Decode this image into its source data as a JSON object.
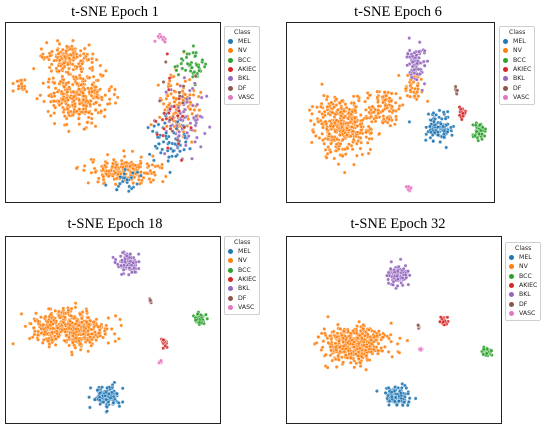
{
  "legend": {
    "title": "Class",
    "classes": [
      {
        "name": "MEL",
        "color": "#1f77b4"
      },
      {
        "name": "NV",
        "color": "#ff7f0e"
      },
      {
        "name": "BCC",
        "color": "#2ca02c"
      },
      {
        "name": "AKIEC",
        "color": "#d62728"
      },
      {
        "name": "BKL",
        "color": "#9467bd"
      },
      {
        "name": "DF",
        "color": "#8c564b"
      },
      {
        "name": "VASC",
        "color": "#e377c2"
      }
    ]
  },
  "chart_data": [
    {
      "type": "scatter",
      "title": "t-SNE Epoch 1",
      "xlabel": "",
      "ylabel": "",
      "grid": false,
      "axis_ticks": false,
      "legend_placement": "right",
      "clusters": [
        {
          "class": "NV",
          "center": [
            0.33,
            0.4
          ],
          "spread": [
            0.15,
            0.14
          ],
          "n": 320
        },
        {
          "class": "NV",
          "center": [
            0.28,
            0.18
          ],
          "spread": [
            0.1,
            0.07
          ],
          "n": 120
        },
        {
          "class": "NV",
          "center": [
            0.55,
            0.84
          ],
          "spread": [
            0.16,
            0.07
          ],
          "n": 200
        },
        {
          "class": "NV",
          "center": [
            0.83,
            0.48
          ],
          "spread": [
            0.09,
            0.18
          ],
          "n": 120
        },
        {
          "class": "NV",
          "center": [
            0.06,
            0.34
          ],
          "spread": [
            0.03,
            0.04
          ],
          "n": 20
        },
        {
          "class": "BCC",
          "center": [
            0.88,
            0.22
          ],
          "spread": [
            0.06,
            0.08
          ],
          "n": 45
        },
        {
          "class": "BKL",
          "center": [
            0.86,
            0.56
          ],
          "spread": [
            0.08,
            0.2
          ],
          "n": 70
        },
        {
          "class": "MEL",
          "center": [
            0.78,
            0.66
          ],
          "spread": [
            0.09,
            0.14
          ],
          "n": 60
        },
        {
          "class": "MEL",
          "center": [
            0.57,
            0.9
          ],
          "spread": [
            0.07,
            0.05
          ],
          "n": 25
        },
        {
          "class": "AKIEC",
          "center": [
            0.78,
            0.52
          ],
          "spread": [
            0.1,
            0.22
          ],
          "n": 25
        },
        {
          "class": "DF",
          "center": [
            0.82,
            0.45
          ],
          "spread": [
            0.1,
            0.2
          ],
          "n": 12
        },
        {
          "class": "VASC",
          "center": [
            0.73,
            0.06
          ],
          "spread": [
            0.04,
            0.02
          ],
          "n": 12
        }
      ]
    },
    {
      "type": "scatter",
      "title": "t-SNE Epoch 6",
      "xlabel": "",
      "ylabel": "",
      "grid": false,
      "axis_ticks": false,
      "legend_placement": "right",
      "clusters": [
        {
          "class": "NV",
          "center": [
            0.27,
            0.57
          ],
          "spread": [
            0.13,
            0.16
          ],
          "n": 380
        },
        {
          "class": "NV",
          "center": [
            0.47,
            0.46
          ],
          "spread": [
            0.07,
            0.1
          ],
          "n": 90
        },
        {
          "class": "NV",
          "center": [
            0.62,
            0.36
          ],
          "spread": [
            0.05,
            0.07
          ],
          "n": 40
        },
        {
          "class": "BKL",
          "center": [
            0.63,
            0.21
          ],
          "spread": [
            0.04,
            0.09
          ],
          "n": 80
        },
        {
          "class": "MEL",
          "center": [
            0.74,
            0.59
          ],
          "spread": [
            0.06,
            0.07
          ],
          "n": 100
        },
        {
          "class": "BCC",
          "center": [
            0.95,
            0.61
          ],
          "spread": [
            0.03,
            0.04
          ],
          "n": 50
        },
        {
          "class": "AKIEC",
          "center": [
            0.86,
            0.5
          ],
          "spread": [
            0.02,
            0.03
          ],
          "n": 25
        },
        {
          "class": "DF",
          "center": [
            0.83,
            0.38
          ],
          "spread": [
            0.01,
            0.02
          ],
          "n": 6
        },
        {
          "class": "VASC",
          "center": [
            0.59,
            0.94
          ],
          "spread": [
            0.01,
            0.02
          ],
          "n": 12
        }
      ]
    },
    {
      "type": "scatter",
      "title": "t-SNE Epoch 18",
      "xlabel": "",
      "ylabel": "",
      "grid": false,
      "axis_ticks": false,
      "legend_placement": "right",
      "clusters": [
        {
          "class": "NV",
          "center": [
            0.28,
            0.49
          ],
          "spread": [
            0.16,
            0.09
          ],
          "n": 500
        },
        {
          "class": "BKL",
          "center": [
            0.57,
            0.13
          ],
          "spread": [
            0.05,
            0.05
          ],
          "n": 110
        },
        {
          "class": "MEL",
          "center": [
            0.47,
            0.87
          ],
          "spread": [
            0.06,
            0.06
          ],
          "n": 140
        },
        {
          "class": "BCC",
          "center": [
            0.92,
            0.44
          ],
          "spread": [
            0.025,
            0.025
          ],
          "n": 50
        },
        {
          "class": "AKIEC",
          "center": [
            0.75,
            0.57
          ],
          "spread": [
            0.015,
            0.02
          ],
          "n": 25
        },
        {
          "class": "DF",
          "center": [
            0.68,
            0.34
          ],
          "spread": [
            0.008,
            0.01
          ],
          "n": 8
        },
        {
          "class": "VASC",
          "center": [
            0.73,
            0.68
          ],
          "spread": [
            0.008,
            0.01
          ],
          "n": 8
        }
      ]
    },
    {
      "type": "scatter",
      "title": "t-SNE Epoch 32",
      "xlabel": "",
      "ylabel": "",
      "grid": false,
      "axis_ticks": false,
      "legend_placement": "right",
      "clusters": [
        {
          "class": "NV",
          "center": [
            0.31,
            0.58
          ],
          "spread": [
            0.13,
            0.09
          ],
          "n": 480
        },
        {
          "class": "BKL",
          "center": [
            0.52,
            0.19
          ],
          "spread": [
            0.05,
            0.05
          ],
          "n": 110
        },
        {
          "class": "MEL",
          "center": [
            0.52,
            0.87
          ],
          "spread": [
            0.05,
            0.05
          ],
          "n": 130
        },
        {
          "class": "BCC",
          "center": [
            0.95,
            0.62
          ],
          "spread": [
            0.02,
            0.025
          ],
          "n": 45
        },
        {
          "class": "AKIEC",
          "center": [
            0.74,
            0.45
          ],
          "spread": [
            0.018,
            0.02
          ],
          "n": 25
        },
        {
          "class": "DF",
          "center": [
            0.62,
            0.48
          ],
          "spread": [
            0.008,
            0.01
          ],
          "n": 7
        },
        {
          "class": "VASC",
          "center": [
            0.63,
            0.61
          ],
          "spread": [
            0.008,
            0.01
          ],
          "n": 8
        }
      ]
    }
  ]
}
